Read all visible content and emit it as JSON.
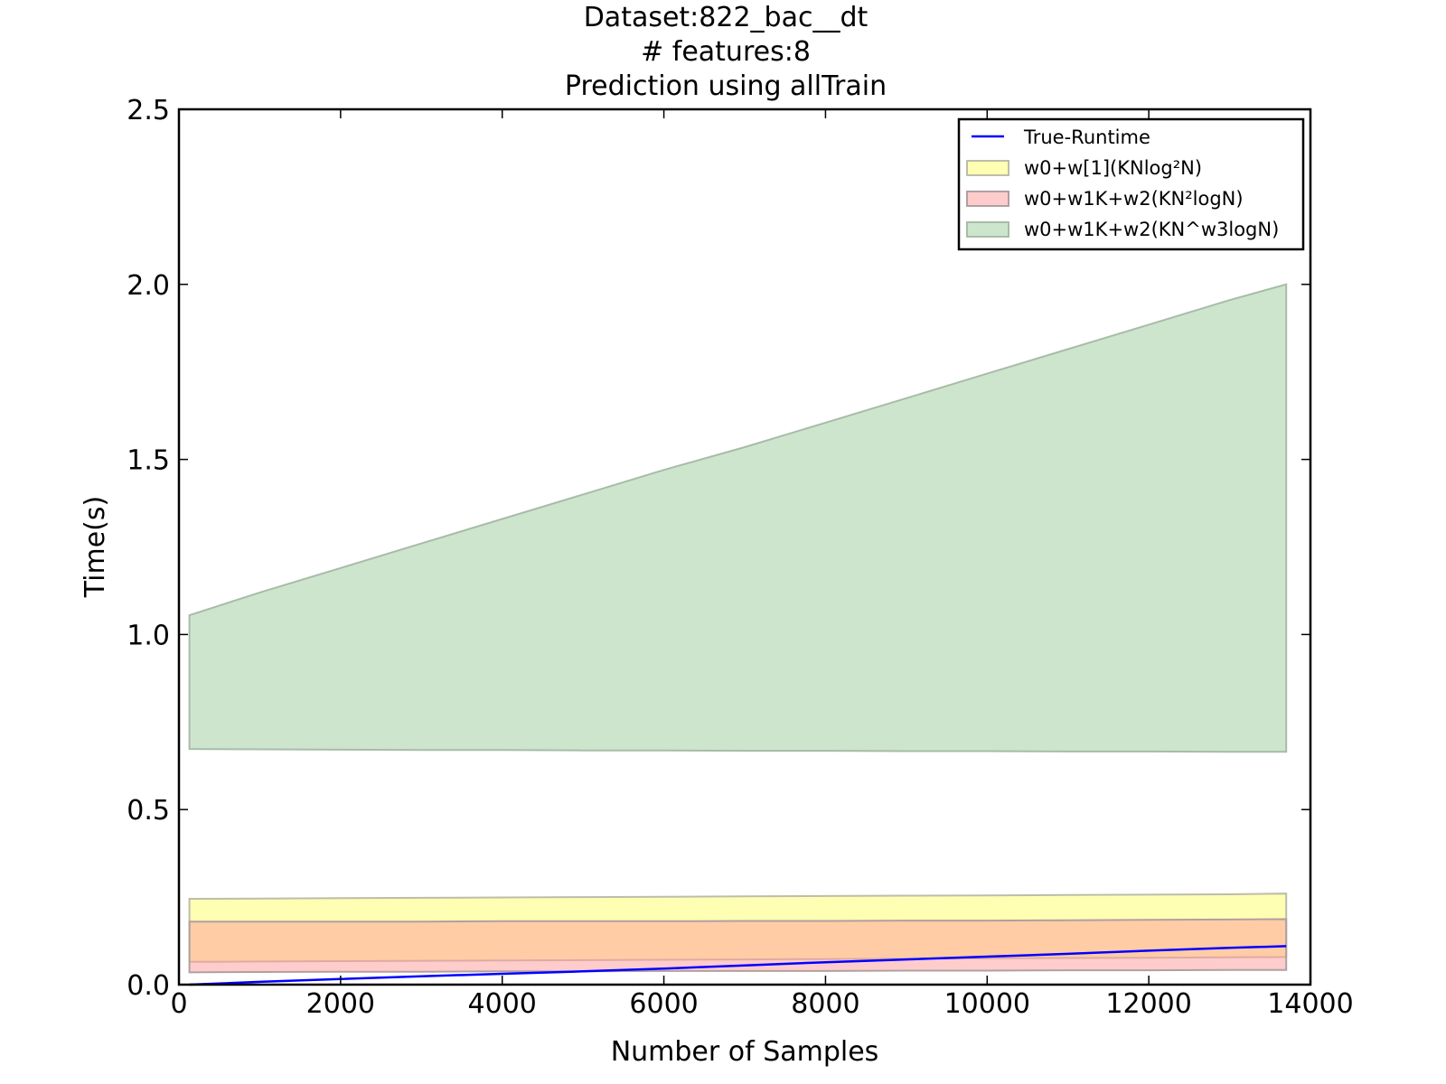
{
  "chart_data": {
    "type": "area",
    "title_lines": [
      "Dataset:822_bac__dt",
      "# features:8",
      "Prediction using allTrain"
    ],
    "xlabel": "Number of Samples",
    "ylabel": "Time(s)",
    "xlim": [
      0,
      14000
    ],
    "ylim": [
      0,
      2.5
    ],
    "xticks": [
      0,
      2000,
      4000,
      6000,
      8000,
      10000,
      12000,
      14000
    ],
    "xtick_labels": [
      "0",
      "2000",
      "4000",
      "6000",
      "8000",
      "10000",
      "12000",
      "14000"
    ],
    "yticks": [
      0,
      0.5,
      1.0,
      1.5,
      2.0,
      2.5
    ],
    "ytick_labels": [
      "0.0",
      "0.5",
      "1.0",
      "1.5",
      "2.0",
      "2.5"
    ],
    "grid": false,
    "legend_position": "top-right",
    "x": [
      130,
      1000,
      2000,
      3000,
      4000,
      5000,
      6000,
      7000,
      8000,
      9000,
      10000,
      11000,
      12000,
      13000,
      13700
    ],
    "series": [
      {
        "name": "w0+w[1](KNlog²N)",
        "kind": "band",
        "fill": "#ffffb3",
        "edge": "#bdbdaa",
        "lower": [
          0.065,
          0.066,
          0.067,
          0.068,
          0.069,
          0.07,
          0.071,
          0.072,
          0.073,
          0.074,
          0.075,
          0.076,
          0.077,
          0.078,
          0.079
        ],
        "upper": [
          0.245,
          0.246,
          0.247,
          0.248,
          0.249,
          0.25,
          0.251,
          0.252,
          0.253,
          0.254,
          0.255,
          0.256,
          0.257,
          0.258,
          0.26
        ]
      },
      {
        "name": "w0+w1K+w2(KN²logN)",
        "kind": "band",
        "fill": "#ff9999",
        "edge": "#b0a0a0",
        "lower": [
          0.035,
          0.036,
          0.037,
          0.037,
          0.038,
          0.038,
          0.039,
          0.039,
          0.039,
          0.04,
          0.04,
          0.041,
          0.041,
          0.042,
          0.042
        ],
        "upper": [
          0.18,
          0.18,
          0.18,
          0.18,
          0.181,
          0.181,
          0.181,
          0.182,
          0.182,
          0.183,
          0.183,
          0.184,
          0.185,
          0.186,
          0.187
        ]
      },
      {
        "name": "w0+w1K+w2(KN^w3logN)",
        "kind": "band",
        "fill": "#cde5cd",
        "edge": "#a8bba8",
        "lower": [
          0.673,
          0.672,
          0.671,
          0.67,
          0.67,
          0.669,
          0.669,
          0.668,
          0.668,
          0.667,
          0.667,
          0.666,
          0.666,
          0.665,
          0.665
        ],
        "upper": [
          1.055,
          1.12,
          1.19,
          1.26,
          1.33,
          1.4,
          1.47,
          1.535,
          1.605,
          1.675,
          1.745,
          1.815,
          1.885,
          1.955,
          2.0
        ]
      },
      {
        "name": "True-Runtime",
        "kind": "line",
        "color": "#0000ff",
        "values": [
          0.0,
          0.008,
          0.016,
          0.024,
          0.031,
          0.038,
          0.046,
          0.055,
          0.064,
          0.072,
          0.08,
          0.088,
          0.097,
          0.105,
          0.11
        ]
      }
    ]
  }
}
